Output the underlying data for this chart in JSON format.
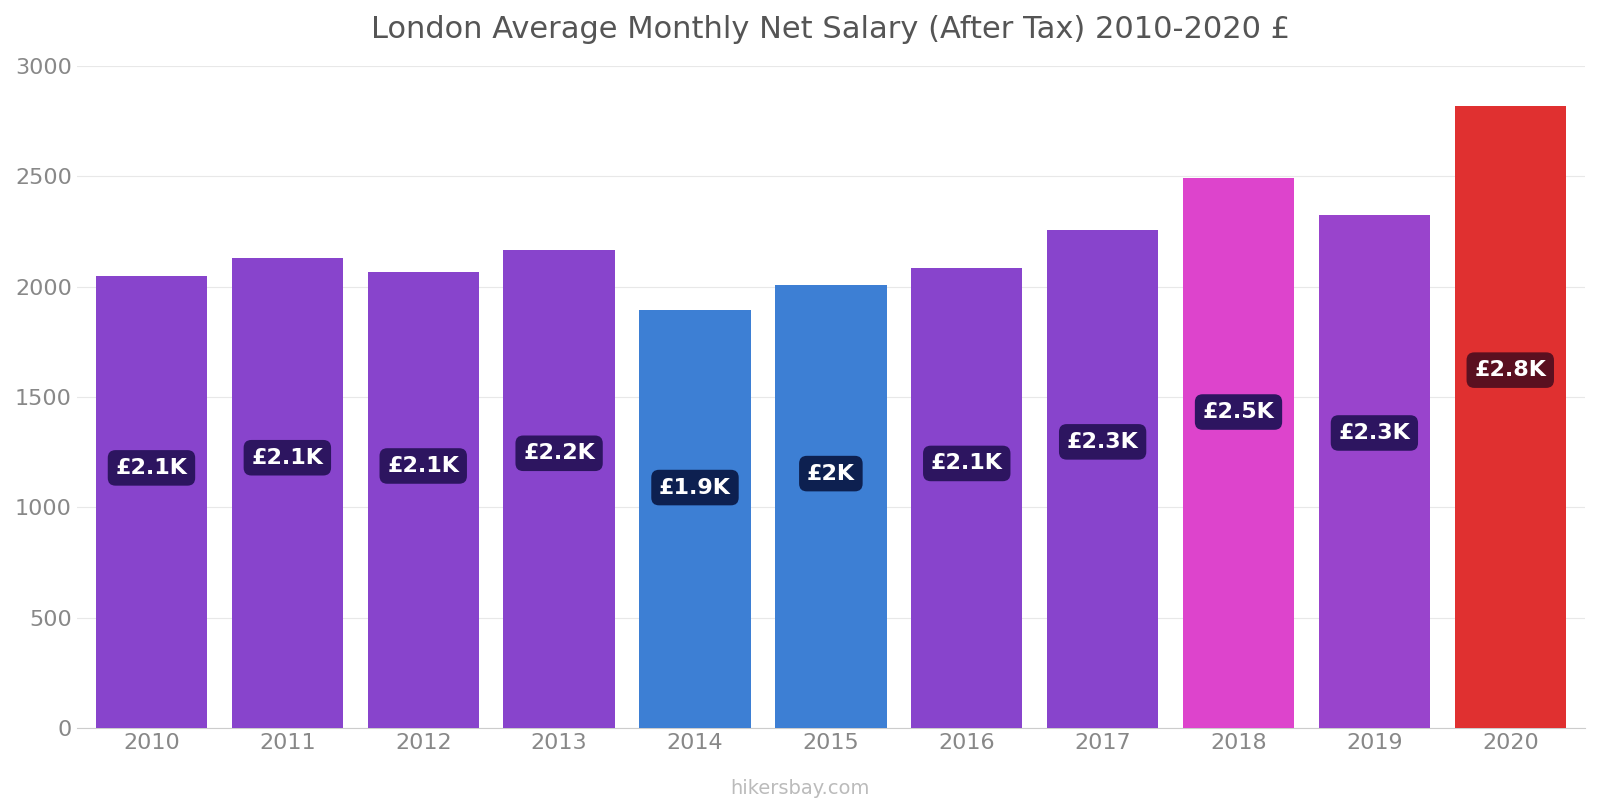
{
  "title": "London Average Monthly Net Salary (After Tax) 2010-2020 £",
  "years": [
    2010,
    2011,
    2012,
    2013,
    2014,
    2015,
    2016,
    2017,
    2018,
    2019,
    2020
  ],
  "values": [
    2050,
    2130,
    2065,
    2165,
    1895,
    2005,
    2085,
    2255,
    2490,
    2325,
    2820
  ],
  "bar_colors": [
    "#8844CC",
    "#8844CC",
    "#8844CC",
    "#8844CC",
    "#3D7FD4",
    "#3D7FD4",
    "#8844CC",
    "#8844CC",
    "#DD44CC",
    "#9944CC",
    "#E03030"
  ],
  "labels": [
    "£2.1K",
    "£2.1K",
    "£2.1K",
    "£2.2K",
    "£1.9K",
    "£2K",
    "£2.1K",
    "£2.3K",
    "£2.5K",
    "£2.3K",
    "£2.8K"
  ],
  "label_bg_colors": [
    "#2D1560",
    "#2D1560",
    "#2D1560",
    "#2D1560",
    "#0D2050",
    "#0D2050",
    "#2D1560",
    "#2D1560",
    "#2D1560",
    "#2D1560",
    "#5A1020"
  ],
  "ylim": [
    0,
    3000
  ],
  "yticks": [
    0,
    500,
    1000,
    1500,
    2000,
    2500,
    3000
  ],
  "background_color": "#ffffff",
  "watermark": "hikersbay.com",
  "title_fontsize": 22,
  "tick_fontsize": 16,
  "label_fontsize": 16
}
